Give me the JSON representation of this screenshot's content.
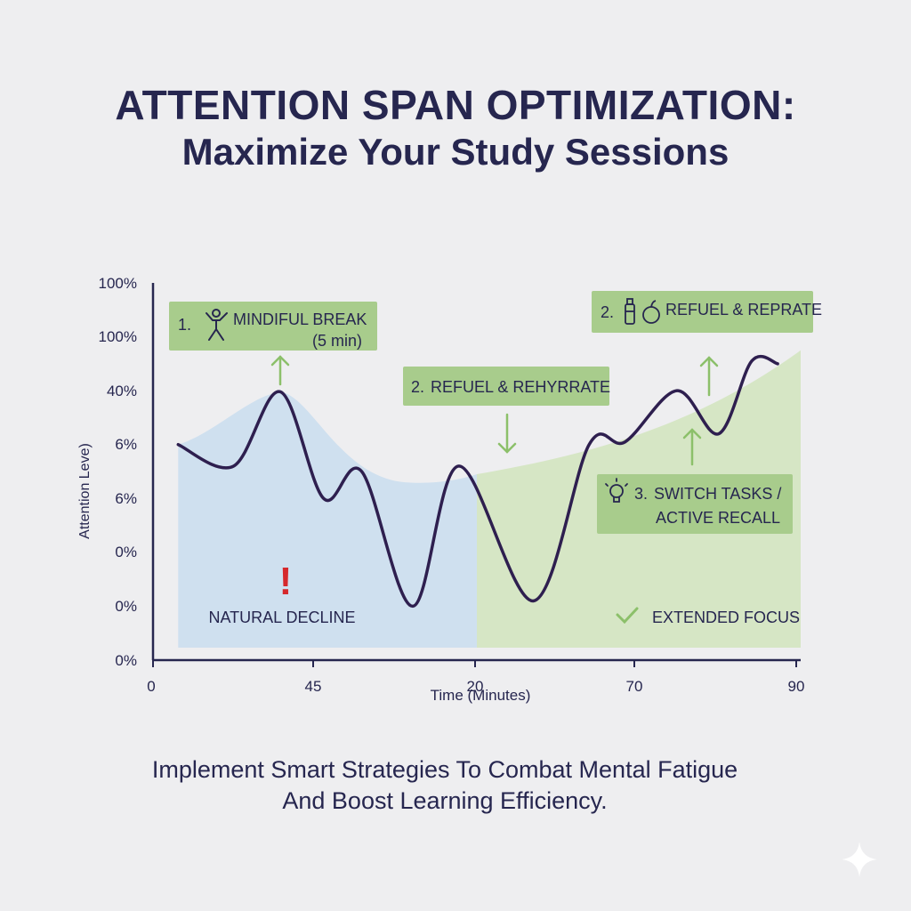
{
  "title": {
    "line1": "ATTENTION SPAN OPTIMIZATION:",
    "line2": "Maximize Your Study Sessions"
  },
  "footer": {
    "line1": "Implement Smart Strategies To Combat Mental Fatigue",
    "line2": "And Boost Learning Efficiency."
  },
  "chart_data": {
    "type": "line",
    "xlabel": "Time (Minutes)",
    "ylabel": "Attention Leve)",
    "x_tick_labels": [
      "0",
      "45",
      "20",
      "70",
      "90"
    ],
    "y_tick_labels": [
      "100%",
      "100%",
      "40%",
      "6%",
      "6%",
      "0%",
      "0%",
      "0%"
    ],
    "x_range": [
      0,
      90
    ],
    "y_range": [
      0,
      7
    ],
    "curve": {
      "color": "#2e1f4f",
      "x": [
        3.5,
        11.2,
        17.7,
        23.7,
        29.0,
        36.1,
        42.5,
        52.9,
        60.6,
        65.6,
        72.8,
        78.6,
        83.2,
        86.8
      ],
      "y": [
        4.0,
        3.6,
        4.98,
        3.0,
        3.5,
        1.0,
        3.6,
        1.1,
        4.0,
        4.05,
        5.0,
        4.2,
        5.55,
        5.5
      ]
    },
    "zones": [
      {
        "label": "NATURAL DECLINE",
        "x_from": 3.5,
        "x_to": 45,
        "color": "#cfe0ef",
        "marker": "!"
      },
      {
        "label": "EXTENDED FOCUS",
        "x_from": 45,
        "x_to": 90,
        "color": "#d6e6c5",
        "marker": "✓"
      }
    ],
    "annotations": [
      {
        "number": "1.",
        "text": "MINDIFUL BREAK",
        "sub": "(5 min)",
        "icon": "person-stretch-icon",
        "arrow": "up"
      },
      {
        "number": "2.",
        "text": "REFUEL & REHYRRATE",
        "sub": "",
        "icon": "",
        "arrow": "down"
      },
      {
        "number": "2.",
        "text": "REFUEL & REPRATE",
        "sub": "",
        "icon": "bottle-apple-icon",
        "arrow": "up"
      },
      {
        "number": "3.",
        "text": "SWITCH TASKS /",
        "sub": "ACTIVE RECALL",
        "icon": "lightbulb-icon",
        "arrow": "up"
      }
    ],
    "colors": {
      "callout_bg": "#a8cc8c",
      "arrow": "#8cc06a",
      "axis": "#26264f",
      "alert": "#d6282c"
    }
  }
}
